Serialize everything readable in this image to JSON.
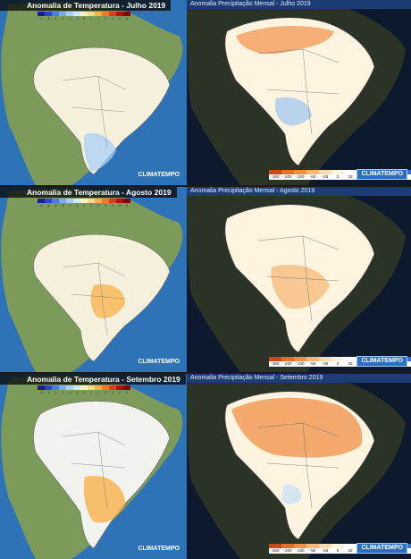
{
  "panels": [
    {
      "title": "Anomalia de Temperatura - Julho 2019",
      "logo": "CLIMATEMPO",
      "type": "temperature",
      "anomaly": "cool-south"
    },
    {
      "title": "Anomalia Precipitação Mensal - Julho 2019",
      "logo": "CLIMATEMPO",
      "type": "precipitation",
      "anomaly": "dry-north"
    },
    {
      "title": "Anomalia de Temperatura - Agosto 2019",
      "logo": "CLIMATEMPO",
      "type": "temperature",
      "anomaly": "warm-center"
    },
    {
      "title": "Anomalia Precipitação Mensal - Agosto 2019",
      "logo": "CLIMATEMPO",
      "type": "precipitation",
      "anomaly": "dry-center"
    },
    {
      "title": "Anomalia de Temperatura - Setembro 2019",
      "logo": "CLIMATEMPO",
      "type": "temperature",
      "anomaly": "warm-south"
    },
    {
      "title": "Anomalia Precipitação Mensal - Setembro 2019",
      "logo": "CLIMATEMPO",
      "type": "precipitation",
      "anomaly": "dry-all"
    }
  ],
  "temp_legend": {
    "colors": [
      "#1c1c8c",
      "#2a46c8",
      "#4a7be0",
      "#7aaaf0",
      "#a8cff8",
      "#d0e8fb",
      "#fdf2c4",
      "#fbd98a",
      "#f7b04a",
      "#ef7a2a",
      "#df3d1c",
      "#b01010",
      "#800808"
    ],
    "ticks": [
      "-6",
      "-5",
      "-4",
      "-3",
      "-2",
      "-1",
      "0",
      "1",
      "2",
      "3",
      "4",
      "5",
      "6"
    ]
  },
  "precip_legend": {
    "colors": [
      "#c84a1a",
      "#e0702a",
      "#f09048",
      "#f7b878",
      "#fbdcb0",
      "#fff4e0",
      "#ffffff",
      "#e6f2ff",
      "#c4defa",
      "#9cc4f2",
      "#6ea0e4",
      "#3e6fc8",
      "#1c3f9c"
    ],
    "ticks": [
      "-300",
      "-200",
      "-100",
      "-50",
      "-25",
      "0",
      "25",
      "50",
      "100",
      "200",
      "300"
    ],
    "unit": "(mm)"
  },
  "colors": {
    "ocean": "#2e73b8",
    "land": "#7c9a5a",
    "night_land": "#2a3326",
    "night_ocean": "#0d1a2e",
    "title_bar": "#1d3c74",
    "neutral_fill": "#f5f1dc"
  }
}
